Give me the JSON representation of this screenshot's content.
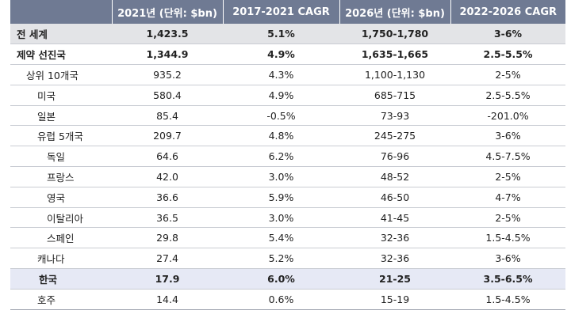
{
  "header": {
    "col0": "",
    "col1": "2021년 (단위: $bn)",
    "col2": "2017-2021 CAGR",
    "col3": "2026년 (단위: $bn)",
    "col4": "2022-2026 CAGR"
  },
  "rows": [
    {
      "label": "전 세계",
      "v2021": "1,423.5",
      "cagr1721": "5.1%",
      "v2026": "1,750-1,780",
      "cagr2226": "3-6%"
    },
    {
      "label": "제약 선진국",
      "v2021": "1,344.9",
      "cagr1721": "4.9%",
      "v2026": "1,635-1,665",
      "cagr2226": "2.5-5.5%"
    },
    {
      "label": "상위 10개국",
      "v2021": "935.2",
      "cagr1721": "4.3%",
      "v2026": "1,100-1,130",
      "cagr2226": "2-5%"
    },
    {
      "label": "미국",
      "v2021": "580.4",
      "cagr1721": "4.9%",
      "v2026": "685-715",
      "cagr2226": "2.5-5.5%"
    },
    {
      "label": "일본",
      "v2021": "85.4",
      "cagr1721": "-0.5%",
      "v2026": "73-93",
      "cagr2226": "-201.0%"
    },
    {
      "label": "유럽 5개국",
      "v2021": "209.7",
      "cagr1721": "4.8%",
      "v2026": "245-275",
      "cagr2226": "3-6%"
    },
    {
      "label": "독일",
      "v2021": "64.6",
      "cagr1721": "6.2%",
      "v2026": "76-96",
      "cagr2226": "4.5-7.5%"
    },
    {
      "label": "프랑스",
      "v2021": "42.0",
      "cagr1721": "3.0%",
      "v2026": "48-52",
      "cagr2226": "2-5%"
    },
    {
      "label": "영국",
      "v2021": "36.6",
      "cagr1721": "5.9%",
      "v2026": "46-50",
      "cagr2226": "4-7%"
    },
    {
      "label": "이탈리아",
      "v2021": "36.5",
      "cagr1721": "3.0%",
      "v2026": "41-45",
      "cagr2226": "2-5%"
    },
    {
      "label": "스페인",
      "v2021": "29.8",
      "cagr1721": "5.4%",
      "v2026": "32-36",
      "cagr2226": "1.5-4.5%"
    },
    {
      "label": "캐나다",
      "v2021": "27.4",
      "cagr1721": "5.2%",
      "v2026": "32-36",
      "cagr2226": "3-6%"
    },
    {
      "label": "한국",
      "v2021": "17.9",
      "cagr1721": "6.0%",
      "v2026": "21-25",
      "cagr2226": "3.5-6.5%"
    },
    {
      "label": "호주",
      "v2021": "14.4",
      "cagr1721": "0.6%",
      "v2026": "15-19",
      "cagr2226": "1.5-4.5%"
    }
  ]
}
